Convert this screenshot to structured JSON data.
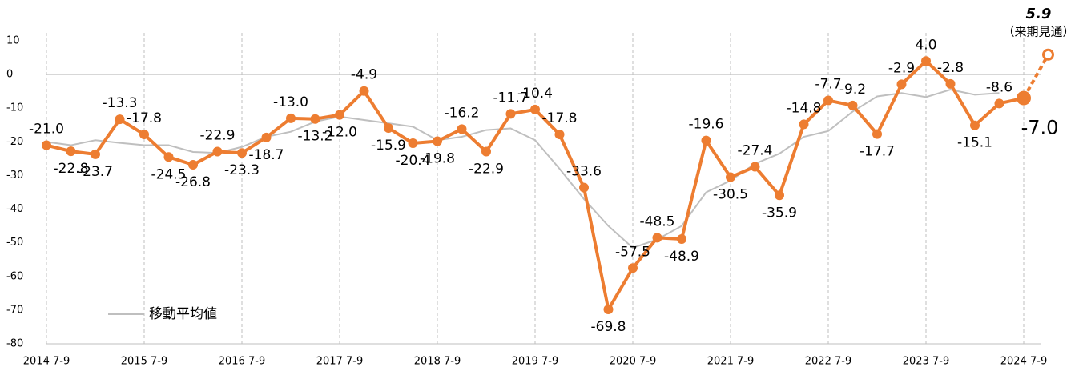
{
  "chart_data": {
    "type": "line",
    "categories": [
      "2014 7-9",
      null,
      null,
      null,
      "2015 7-9",
      null,
      null,
      null,
      "2016 7-9",
      null,
      null,
      null,
      "2017 7-9",
      null,
      null,
      null,
      "2018 7-9",
      null,
      null,
      null,
      "2019 7-9",
      null,
      null,
      null,
      "2020 7-9",
      null,
      null,
      null,
      "2021 7-9",
      null,
      null,
      null,
      "2022 7-9",
      null,
      null,
      null,
      "2023 7-9",
      null,
      null,
      null,
      "2024 7-9",
      null
    ],
    "series": [
      {
        "color": "#ed7d31",
        "values": [
          -21.0,
          -22.8,
          -23.7,
          -13.3,
          -17.8,
          -24.5,
          -26.8,
          -22.9,
          -23.3,
          -18.7,
          -13.0,
          -13.2,
          -12.0,
          -4.9,
          -15.9,
          -20.4,
          -19.8,
          -16.2,
          -22.9,
          -11.7,
          -10.4,
          -17.8,
          -33.6,
          -69.8,
          -57.5,
          -48.5,
          -48.9,
          -19.6,
          -30.5,
          -27.4,
          -35.9,
          -14.8,
          -7.7,
          -9.2,
          -17.7,
          -2.9,
          4.0,
          -2.8,
          -15.1,
          -8.6,
          -7.0,
          5.9
        ],
        "value_labels": [
          "-21.0",
          "-22.8",
          "-23.7",
          "-13.3",
          "-17.8",
          "-24.5",
          "-26.8",
          "-22.9",
          "-23.3",
          "-18.7",
          "-13.0",
          "-13.2",
          "-12.0",
          "-4.9",
          "-15.9",
          "-20.4",
          "-19.8",
          "-16.2",
          "-22.9",
          "-11.7",
          "-10.4",
          "-17.8",
          "-33.6",
          "-69.8",
          "-57.5",
          "-48.5",
          "-48.9",
          "-19.6",
          "-30.5",
          "-27.4",
          "-35.9",
          "-14.8",
          "-7.7",
          "-9.2",
          "-17.7",
          "-2.9",
          "4.0",
          "-2.8",
          "-15.1",
          "-8.6",
          "-7.0",
          "5.9"
        ]
      },
      {
        "name": "移動平均値",
        "color": "#bfbfbf",
        "values": [
          -20,
          -21,
          -19.5,
          -20.3,
          -21,
          -21,
          -23,
          -23.3,
          -21.5,
          -18.5,
          -17,
          -14,
          -12.5,
          -13.5,
          -14.5,
          -15.5,
          -19.5,
          -18.5,
          -16.5,
          -16,
          -19.5,
          -28,
          -37,
          -45,
          -51.5,
          -49,
          -45,
          -35,
          -31.5,
          -26.5,
          -23.5,
          -18.5,
          -16.8,
          -11,
          -6.5,
          -5.5,
          -6.7,
          -4.5,
          -6,
          -5.5,
          null,
          null
        ]
      }
    ],
    "forecast_note": "（来期見通）",
    "ylim": [
      -80,
      10
    ],
    "yticks": [
      10,
      0,
      -10,
      -20,
      -30,
      -40,
      -50,
      -60,
      -70,
      -80
    ]
  }
}
